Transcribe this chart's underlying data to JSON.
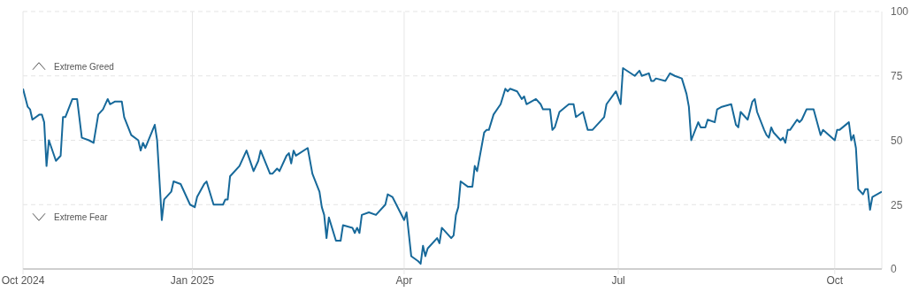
{
  "chart_data": {
    "type": "line",
    "color": "#17699a",
    "ylim": [
      0,
      100
    ],
    "yticks": [
      0,
      25,
      50,
      75,
      100
    ],
    "grid": true,
    "xlim": [
      "2024-10-21",
      "2025-10-21"
    ],
    "xticks": [
      {
        "value": "2024-10-21",
        "label": "Oct 2024"
      },
      {
        "value": "2025-01-01",
        "label": "Jan 2025"
      },
      {
        "value": "2025-04-01",
        "label": "Apr"
      },
      {
        "value": "2025-07-01",
        "label": "Jul"
      },
      {
        "value": "2025-10-01",
        "label": "Oct"
      }
    ],
    "annotations": [
      "Extreme Greed",
      "Extreme Fear"
    ],
    "x": [
      "2024-10-21",
      "2024-10-23",
      "2024-10-24",
      "2024-10-25",
      "2024-10-28",
      "2024-10-29",
      "2024-10-30",
      "2024-10-31",
      "2024-11-01",
      "2024-11-04",
      "2024-11-06",
      "2024-11-07",
      "2024-11-08",
      "2024-11-11",
      "2024-11-13",
      "2024-11-15",
      "2024-11-18",
      "2024-11-20",
      "2024-11-22",
      "2024-11-24",
      "2024-11-26",
      "2024-11-27",
      "2024-11-29",
      "2024-12-02",
      "2024-12-03",
      "2024-12-06",
      "2024-12-09",
      "2024-12-10",
      "2024-12-11",
      "2024-12-12",
      "2024-12-16",
      "2024-12-17",
      "2024-12-19",
      "2024-12-20",
      "2024-12-23",
      "2024-12-24",
      "2024-12-27",
      "2024-12-31",
      "2025-01-02",
      "2025-01-03",
      "2025-01-06",
      "2025-01-07",
      "2025-01-10",
      "2025-01-14",
      "2025-01-15",
      "2025-01-16",
      "2025-01-17",
      "2025-01-21",
      "2025-01-24",
      "2025-01-27",
      "2025-01-29",
      "2025-01-30",
      "2025-02-03",
      "2025-02-04",
      "2025-02-06",
      "2025-02-07",
      "2025-02-10",
      "2025-02-11",
      "2025-02-12",
      "2025-02-13",
      "2025-02-14",
      "2025-02-19",
      "2025-02-21",
      "2025-02-24",
      "2025-02-25",
      "2025-02-26",
      "2025-02-27",
      "2025-02-28",
      "2025-03-03",
      "2025-03-04",
      "2025-03-05",
      "2025-03-06",
      "2025-03-10",
      "2025-03-11",
      "2025-03-12",
      "2025-03-13",
      "2025-03-14",
      "2025-03-17",
      "2025-03-20",
      "2025-03-24",
      "2025-03-25",
      "2025-03-27",
      "2025-04-01",
      "2025-04-02",
      "2025-04-04",
      "2025-04-07",
      "2025-04-08",
      "2025-04-09",
      "2025-04-10",
      "2025-04-11",
      "2025-04-15",
      "2025-04-16",
      "2025-04-17",
      "2025-04-21",
      "2025-04-22",
      "2025-04-23",
      "2025-04-24",
      "2025-04-25",
      "2025-04-28",
      "2025-04-30",
      "2025-05-01",
      "2025-05-02",
      "2025-05-05",
      "2025-05-06",
      "2025-05-07",
      "2025-05-09",
      "2025-05-12",
      "2025-05-14",
      "2025-05-15",
      "2025-05-16",
      "2025-05-19",
      "2025-05-21",
      "2025-05-22",
      "2025-05-23",
      "2025-05-27",
      "2025-05-29",
      "2025-05-30",
      "2025-06-02",
      "2025-06-03",
      "2025-06-04",
      "2025-06-06",
      "2025-06-10",
      "2025-06-12",
      "2025-06-13",
      "2025-06-16",
      "2025-06-18",
      "2025-06-20",
      "2025-06-25",
      "2025-06-26",
      "2025-06-30",
      "2025-07-02",
      "2025-07-03",
      "2025-07-08",
      "2025-07-10",
      "2025-07-11",
      "2025-07-14",
      "2025-07-15",
      "2025-07-16",
      "2025-07-17",
      "2025-07-21",
      "2025-07-23",
      "2025-07-25",
      "2025-07-28",
      "2025-07-30",
      "2025-07-31",
      "2025-08-01",
      "2025-08-04",
      "2025-08-05",
      "2025-08-07",
      "2025-08-08",
      "2025-08-11",
      "2025-08-12",
      "2025-08-14",
      "2025-08-18",
      "2025-08-20",
      "2025-08-21",
      "2025-08-22",
      "2025-08-25",
      "2025-08-27",
      "2025-08-28",
      "2025-08-29",
      "2025-09-01",
      "2025-09-02",
      "2025-09-03",
      "2025-09-04",
      "2025-09-05",
      "2025-09-08",
      "2025-09-09",
      "2025-09-10",
      "2025-09-11",
      "2025-09-12",
      "2025-09-15",
      "2025-09-16",
      "2025-09-17",
      "2025-09-19",
      "2025-09-22",
      "2025-09-25",
      "2025-09-26",
      "2025-10-01",
      "2025-10-02",
      "2025-10-03",
      "2025-10-07",
      "2025-10-08",
      "2025-10-09",
      "2025-10-10",
      "2025-10-11",
      "2025-10-13",
      "2025-10-14",
      "2025-10-15",
      "2025-10-16",
      "2025-10-17",
      "2025-10-21"
    ],
    "values": [
      70,
      63,
      62,
      58,
      60,
      60,
      57,
      40,
      50,
      42,
      44,
      59,
      59,
      66,
      66,
      51,
      50,
      49,
      60,
      62,
      66,
      64,
      65,
      65,
      59,
      52,
      50,
      46,
      49,
      47,
      56,
      50,
      19,
      27,
      30,
      34,
      33,
      25,
      24,
      28,
      33,
      34,
      25,
      25,
      27,
      27,
      36,
      40,
      46,
      38,
      42,
      46,
      37,
      37,
      39,
      38,
      44,
      45,
      41,
      46,
      44,
      47,
      37,
      30,
      24,
      21,
      12,
      20,
      11,
      11,
      11,
      17,
      16,
      14,
      16,
      14,
      21,
      22,
      21,
      25,
      29,
      28,
      19,
      22,
      5,
      3,
      2,
      9,
      5,
      8,
      12,
      10,
      16,
      12,
      13,
      21,
      24,
      34,
      32,
      32,
      40,
      38,
      53,
      54,
      54,
      60,
      64,
      70,
      69,
      70,
      69,
      66,
      67,
      64,
      66,
      64,
      62,
      62,
      54,
      55,
      61,
      64,
      64,
      59,
      61,
      54,
      54,
      59,
      64,
      69,
      64,
      78,
      75,
      77,
      75,
      76,
      73,
      73,
      74,
      73,
      76,
      75,
      74,
      68,
      63,
      50,
      57,
      55,
      55,
      58,
      57,
      62,
      63,
      64,
      56,
      55,
      61,
      58,
      65,
      66,
      61,
      54,
      52,
      51,
      55,
      53,
      50,
      51,
      49,
      54,
      54,
      58,
      57,
      58,
      62,
      62,
      52,
      54,
      50,
      54,
      54,
      57,
      50,
      52,
      47,
      31,
      29,
      31,
      31,
      23,
      28,
      30
    ]
  }
}
